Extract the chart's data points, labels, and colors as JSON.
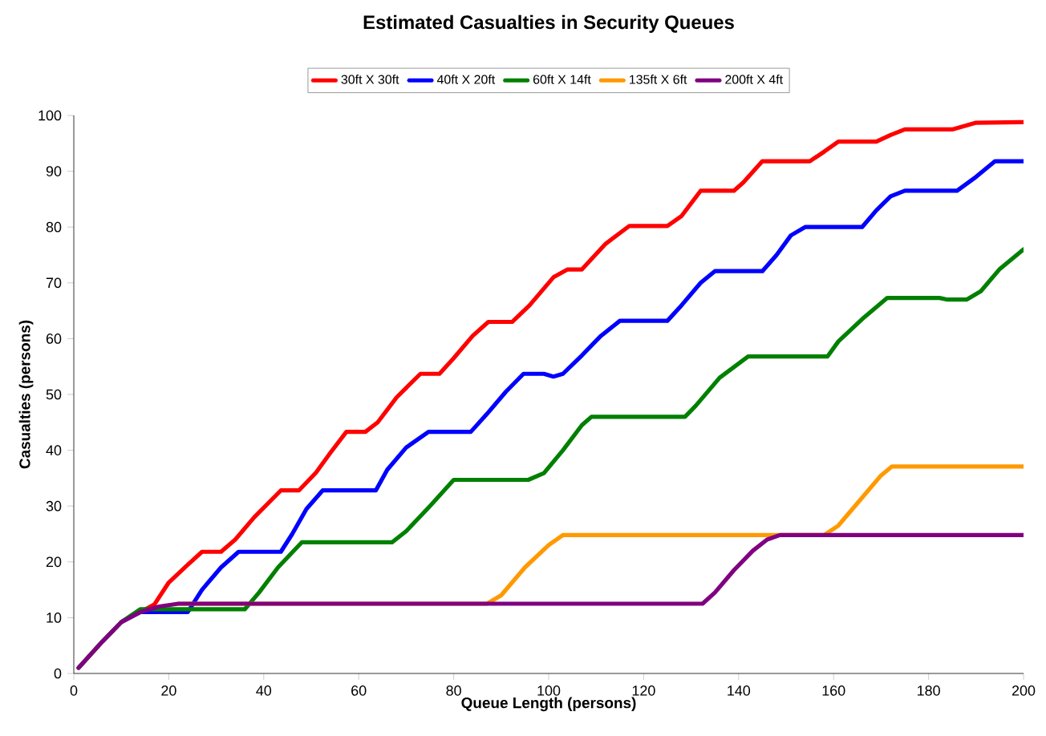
{
  "chart_data": {
    "type": "line",
    "title": "Estimated Casualties in Security Queues",
    "xlabel": "Queue Length (persons)",
    "ylabel": "Casualties (persons)",
    "xlim": [
      0,
      200
    ],
    "ylim": [
      0,
      100
    ],
    "xticks": [
      0,
      20,
      40,
      60,
      80,
      100,
      120,
      140,
      160,
      180,
      200
    ],
    "yticks": [
      0,
      10,
      20,
      30,
      40,
      50,
      60,
      70,
      80,
      90,
      100
    ],
    "grid": false,
    "legend": "top",
    "marker": "none",
    "line_style": "solid",
    "series": [
      {
        "name": "30ft X 30ft",
        "color": "#ff0000",
        "x": [
          14,
          17,
          20,
          24,
          27,
          31,
          34,
          38,
          43.6,
          47.4,
          51,
          54,
          57.4,
          61.4,
          64,
          68,
          73,
          77,
          80,
          84,
          87.3,
          92.3,
          96,
          101,
          104,
          107,
          112,
          117,
          125,
          128,
          132,
          139,
          141,
          145,
          155,
          158,
          161,
          169,
          172,
          175,
          185,
          190,
          200
        ],
        "values": [
          11,
          12.4,
          16.3,
          19.5,
          21.8,
          21.8,
          24,
          28,
          32.8,
          32.8,
          36,
          39.5,
          43.3,
          43.3,
          45,
          49.5,
          53.7,
          53.7,
          56.5,
          60.5,
          63,
          63,
          66,
          71,
          72.4,
          72.4,
          77,
          80.2,
          80.2,
          82,
          86.5,
          86.5,
          88,
          91.8,
          91.8,
          93.5,
          95.3,
          95.3,
          96.5,
          97.5,
          97.5,
          98.7,
          98.8
        ]
      },
      {
        "name": "40ft X 20ft",
        "color": "#0000ff",
        "x": [
          10,
          14,
          24,
          27,
          31,
          34.7,
          43.6,
          46,
          49,
          52.4,
          63.6,
          66,
          70,
          74.7,
          83.6,
          87,
          91,
          94.7,
          99,
          101,
          103,
          107,
          111,
          115,
          125,
          128,
          132,
          135,
          145,
          148,
          151,
          154,
          166,
          169,
          172,
          175,
          186,
          190,
          194,
          200
        ],
        "values": [
          9.2,
          11,
          11,
          15,
          19,
          21.8,
          21.8,
          25,
          29.5,
          32.8,
          32.8,
          36.5,
          40.5,
          43.3,
          43.3,
          46.5,
          50.5,
          53.7,
          53.7,
          53.2,
          53.7,
          57,
          60.5,
          63.2,
          63.2,
          66,
          70,
          72.1,
          72.1,
          75,
          78.5,
          80,
          80,
          83,
          85.5,
          86.5,
          86.5,
          89,
          91.8,
          91.8
        ]
      },
      {
        "name": "60ft X 14ft",
        "color": "#008000",
        "x": [
          1,
          6,
          10,
          14,
          36,
          39,
          43,
          48,
          67,
          70,
          75,
          80,
          95.7,
          99,
          103,
          107,
          109,
          128.7,
          131,
          136,
          142,
          158.7,
          161,
          166,
          171.3,
          182.3,
          184,
          188,
          191,
          195,
          200
        ],
        "values": [
          1,
          5.7,
          9.2,
          11.5,
          11.5,
          14.5,
          19,
          23.5,
          23.5,
          25.5,
          30,
          34.7,
          34.7,
          35.9,
          40,
          44.5,
          46,
          46,
          48,
          53,
          56.8,
          56.8,
          59.5,
          63.5,
          67.3,
          67.3,
          67,
          67,
          68.5,
          72.5,
          76
        ]
      },
      {
        "name": "135ft X 6ft",
        "color": "#ff9900",
        "x": [
          22,
          87,
          90,
          95,
          100,
          103,
          147,
          158,
          161,
          166,
          170,
          172.3,
          200
        ],
        "values": [
          12.5,
          12.5,
          14,
          19,
          23,
          24.8,
          24.8,
          24.8,
          26.5,
          31.5,
          35.5,
          37.1,
          37.1
        ]
      },
      {
        "name": "200ft X 4ft",
        "color": "#800080",
        "x": [
          1,
          6,
          10,
          14,
          18,
          22,
          132.4,
          135,
          139,
          143,
          146,
          148.7,
          200
        ],
        "values": [
          1,
          5.7,
          9.2,
          11,
          12,
          12.5,
          12.5,
          14.5,
          18.5,
          22,
          24,
          24.8,
          24.8
        ]
      }
    ]
  }
}
